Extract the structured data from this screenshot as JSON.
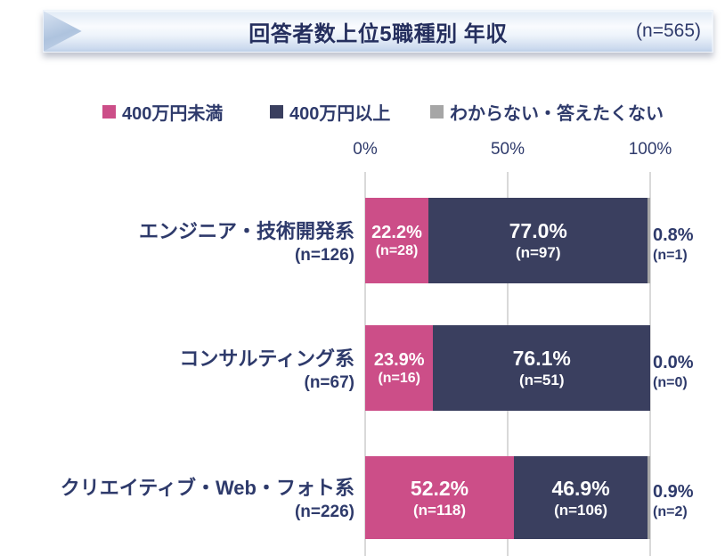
{
  "header": {
    "title": "回答者数上位5職種別 年収",
    "total_n": "(n=565)"
  },
  "chart_data": {
    "type": "bar",
    "orientation": "horizontal",
    "stacked": true,
    "title": "回答者数上位5職種別 年収",
    "total_n": "(n=565)",
    "x_axis": {
      "ticks": [
        "0%",
        "50%",
        "100%"
      ],
      "range": [
        0,
        100
      ],
      "unit": "%"
    },
    "legend_position": "top",
    "grid": "vertical",
    "legend": [
      {
        "label": "400万円未満",
        "color": "#CC4E88"
      },
      {
        "label": "400万円以上",
        "color": "#3A3F5F"
      },
      {
        "label": "わからない・答えたくない",
        "color": "#A6A6A6"
      }
    ],
    "rows": [
      {
        "label": "エンジニア・技術開発系",
        "n": "(n=126)",
        "segments": [
          {
            "series": "400万円未満",
            "value": 22.2,
            "label": "22.2%",
            "n": "(n=28)"
          },
          {
            "series": "400万円以上",
            "value": 77.0,
            "label": "77.0%",
            "n": "(n=97)"
          },
          {
            "series": "わからない・答えたくない",
            "value": 0.8,
            "label": "0.8%",
            "n": "(n=1)",
            "label_outside": true
          }
        ]
      },
      {
        "label": "コンサルティング系",
        "n": "(n=67)",
        "segments": [
          {
            "series": "400万円未満",
            "value": 23.9,
            "label": "23.9%",
            "n": "(n=16)"
          },
          {
            "series": "400万円以上",
            "value": 76.1,
            "label": "76.1%",
            "n": "(n=51)"
          },
          {
            "series": "わからない・答えたくない",
            "value": 0.0,
            "label": "0.0%",
            "n": "(n=0)",
            "label_outside": true
          }
        ]
      },
      {
        "label": "クリエイティブ・Web・フォト系",
        "n": "(n=226)",
        "segments": [
          {
            "series": "400万円未満",
            "value": 52.2,
            "label": "52.2%",
            "n": "(n=118)"
          },
          {
            "series": "400万円以上",
            "value": 46.9,
            "label": "46.9%",
            "n": "(n=106)"
          },
          {
            "series": "わからない・答えたくない",
            "value": 0.9,
            "label": "0.9%",
            "n": "(n=2)",
            "label_outside": true
          }
        ]
      }
    ],
    "colors": {
      "text_navy": "#2E3A6B",
      "gridline": "#D9D9D9",
      "bar_label_text": "#FFFFFF"
    }
  }
}
